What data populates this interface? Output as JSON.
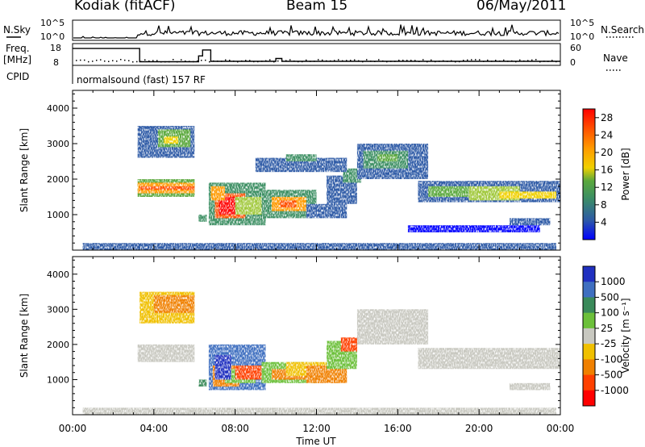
{
  "header": {
    "station": "Kodiak (fitACF)",
    "beam": "Beam 15",
    "date": "06/May/2011"
  },
  "panels": {
    "nsky": {
      "left_label": "N.Sky",
      "right_label": "N.Search",
      "ticks": [
        "10^5",
        "10^0"
      ]
    },
    "freq": {
      "left_label_1": "Freq.",
      "left_label_2": "[MHz]",
      "left_ticks": [
        "18",
        "8"
      ],
      "right_label": "Nave",
      "right_ticks": [
        "60",
        "0"
      ]
    },
    "cpid": {
      "left_label": "CPID",
      "text": "normalsound (fast) 157 RF"
    }
  },
  "colors": {
    "power": [
      "#0000ff",
      "#2d5aa6",
      "#3c8f63",
      "#5aa83c",
      "#a0c83a",
      "#f0d000",
      "#ff9a00",
      "#ff5000",
      "#ff0000"
    ],
    "velocity": [
      "#2030c0",
      "#3f6fc0",
      "#3a8a5a",
      "#6cc03a",
      "#c8c8c0",
      "#f0c000",
      "#f08000",
      "#ff4000",
      "#ff0000"
    ]
  },
  "chart_data": [
    {
      "type": "heatmap",
      "title": "Power",
      "xlabel": "",
      "ylabel": "Slant Range [km]",
      "ylim": [
        0,
        4500
      ],
      "y_ticks": [
        "4000",
        "3000",
        "2000",
        "1000"
      ],
      "x_ticks": [
        "00:00",
        "04:00",
        "08:00",
        "12:00",
        "16:00",
        "20:00",
        "00:00"
      ],
      "colorbar_label": "Power [dB]",
      "colorbar_ticks": [
        "28",
        "24",
        "20",
        "16",
        "12",
        "8",
        "4"
      ],
      "colorbar_range": [
        0,
        30
      ]
    },
    {
      "type": "heatmap",
      "title": "Velocity",
      "xlabel": "Time UT",
      "ylabel": "Slant Range [km]",
      "ylim": [
        0,
        4500
      ],
      "y_ticks": [
        "4000",
        "3000",
        "2000",
        "1000"
      ],
      "x_ticks": [
        "00:00",
        "04:00",
        "08:00",
        "12:00",
        "16:00",
        "20:00",
        "00:00"
      ],
      "colorbar_label": "Velocity [m s⁻¹]",
      "colorbar_ticks": [
        "1000",
        "500",
        "100",
        "25",
        "-25",
        "-100",
        "-500",
        "-1000"
      ]
    }
  ]
}
